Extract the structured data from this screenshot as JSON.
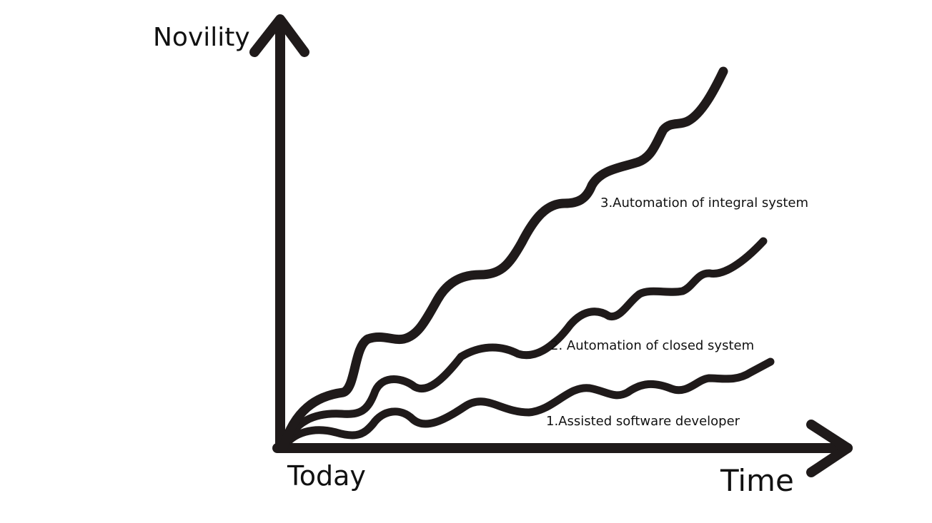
{
  "axes": {
    "y_label": "Novility",
    "x_label": "Time",
    "origin_label": "Today"
  },
  "curves": [
    {
      "label": "1.Assisted software developer"
    },
    {
      "label": "2. Automation of closed system"
    },
    {
      "label": "3.Automation of integral system"
    }
  ],
  "colors": {
    "ink": "#1f1a1a",
    "background": "#ffffff"
  }
}
